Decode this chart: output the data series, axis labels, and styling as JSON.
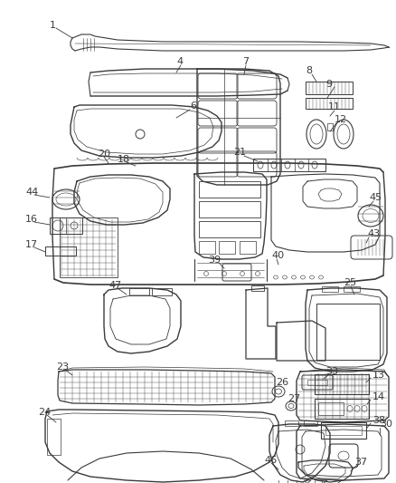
{
  "background": "#ffffff",
  "line_color": "#3a3a3a",
  "label_color": "#000000",
  "figsize": [
    4.38,
    5.33
  ],
  "dpi": 100,
  "xlim": [
    0,
    438
  ],
  "ylim": [
    0,
    533
  ]
}
